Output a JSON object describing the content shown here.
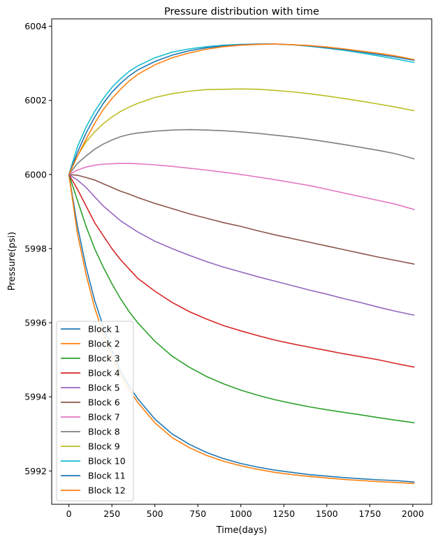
{
  "chart_data": {
    "type": "line",
    "title": "Pressure distribution with time",
    "xlabel": "Time(days)",
    "ylabel": "Pressure(psi)",
    "xlim": [
      -100,
      2110
    ],
    "ylim": [
      5991.1,
      6004.2
    ],
    "xticks": [
      0,
      250,
      500,
      750,
      1000,
      1250,
      1500,
      1750,
      2000
    ],
    "yticks": [
      5992,
      5994,
      5996,
      5998,
      6000,
      6002,
      6004
    ],
    "grid": false,
    "legend_position": "lower-left",
    "x": [
      0,
      50,
      100,
      150,
      200,
      250,
      300,
      350,
      400,
      500,
      600,
      700,
      800,
      900,
      1000,
      1100,
      1200,
      1300,
      1400,
      1500,
      1600,
      1700,
      1800,
      1900,
      2010
    ],
    "series": [
      {
        "name": "Block 1",
        "color": "#1f77b4",
        "values": [
          6000,
          5998.6,
          5997.5,
          5996.6,
          5995.9,
          5995.25,
          5994.7,
          5994.3,
          5993.95,
          5993.4,
          5993.0,
          5992.72,
          5992.5,
          5992.33,
          5992.2,
          5992.1,
          5992.02,
          5991.96,
          5991.9,
          5991.86,
          5991.82,
          5991.79,
          5991.76,
          5991.74,
          5991.7
        ]
      },
      {
        "name": "Block 2",
        "color": "#ff7f0e",
        "values": [
          6000,
          5998.4,
          5997.3,
          5996.4,
          5995.7,
          5995.1,
          5994.6,
          5994.2,
          5993.85,
          5993.3,
          5992.9,
          5992.63,
          5992.42,
          5992.26,
          5992.14,
          5992.04,
          5991.96,
          5991.9,
          5991.85,
          5991.81,
          5991.77,
          5991.74,
          5991.71,
          5991.69,
          5991.66
        ]
      },
      {
        "name": "Block 3",
        "color": "#2ca02c",
        "values": [
          6000,
          5999.3,
          5998.6,
          5998.0,
          5997.5,
          5997.05,
          5996.65,
          5996.3,
          5996.0,
          5995.5,
          5995.1,
          5994.8,
          5994.55,
          5994.35,
          5994.18,
          5994.04,
          5993.92,
          5993.82,
          5993.73,
          5993.65,
          5993.58,
          5993.51,
          5993.44,
          5993.37,
          5993.3
        ]
      },
      {
        "name": "Block 4",
        "color": "#d62728",
        "values": [
          6000,
          5999.6,
          5999.15,
          5998.7,
          5998.35,
          5998.0,
          5997.7,
          5997.45,
          5997.2,
          5996.85,
          5996.55,
          5996.3,
          5996.1,
          5995.92,
          5995.78,
          5995.65,
          5995.53,
          5995.43,
          5995.34,
          5995.25,
          5995.16,
          5995.08,
          5995.0,
          5994.9,
          5994.8
        ]
      },
      {
        "name": "Block 5",
        "color": "#9467bd",
        "values": [
          6000,
          5999.85,
          5999.65,
          5999.4,
          5999.15,
          5998.95,
          5998.75,
          5998.6,
          5998.45,
          5998.2,
          5998.0,
          5997.82,
          5997.65,
          5997.5,
          5997.37,
          5997.24,
          5997.12,
          5997.0,
          5996.88,
          5996.77,
          5996.65,
          5996.54,
          5996.42,
          5996.31,
          5996.2
        ]
      },
      {
        "name": "Block 6",
        "color": "#8c564b",
        "values": [
          6000,
          5999.98,
          5999.92,
          5999.85,
          5999.75,
          5999.65,
          5999.55,
          5999.47,
          5999.38,
          5999.22,
          5999.08,
          5998.94,
          5998.82,
          5998.7,
          5998.6,
          5998.48,
          5998.37,
          5998.27,
          5998.17,
          5998.07,
          5997.97,
          5997.87,
          5997.77,
          5997.68,
          5997.58
        ]
      },
      {
        "name": "Block 7",
        "color": "#e377c2",
        "values": [
          6000,
          6000.12,
          6000.2,
          6000.25,
          6000.28,
          6000.29,
          6000.3,
          6000.3,
          6000.29,
          6000.26,
          6000.22,
          6000.17,
          6000.12,
          6000.06,
          6000.0,
          5999.93,
          5999.86,
          5999.78,
          5999.7,
          5999.6,
          5999.5,
          5999.4,
          5999.3,
          5999.2,
          5999.05
        ]
      },
      {
        "name": "Block 8",
        "color": "#7f7f7f",
        "values": [
          6000,
          6000.3,
          6000.5,
          6000.68,
          6000.82,
          6000.93,
          6001.02,
          6001.08,
          6001.12,
          6001.17,
          6001.2,
          6001.21,
          6001.2,
          6001.18,
          6001.15,
          6001.11,
          6001.06,
          6001.01,
          6000.95,
          6000.88,
          6000.81,
          6000.73,
          6000.65,
          6000.56,
          6000.42
        ]
      },
      {
        "name": "Block 9",
        "color": "#bcbd22",
        "values": [
          6000,
          6000.5,
          6000.88,
          6001.15,
          6001.37,
          6001.55,
          6001.7,
          6001.82,
          6001.92,
          6002.08,
          6002.18,
          6002.25,
          6002.29,
          6002.3,
          6002.31,
          6002.3,
          6002.27,
          6002.23,
          6002.18,
          6002.12,
          6002.05,
          6001.98,
          6001.9,
          6001.82,
          6001.72
        ]
      },
      {
        "name": "Block 10",
        "color": "#17becf",
        "values": [
          6000,
          6000.75,
          6001.28,
          6001.7,
          6002.05,
          6002.35,
          6002.58,
          6002.78,
          6002.93,
          6003.15,
          6003.3,
          6003.39,
          6003.45,
          6003.49,
          6003.51,
          6003.52,
          6003.52,
          6003.5,
          6003.46,
          6003.41,
          6003.35,
          6003.28,
          6003.2,
          6003.12,
          6003.02
        ]
      },
      {
        "name": "Block 11",
        "color": "#1f77b4",
        "values": [
          6000,
          6000.6,
          6001.12,
          6001.55,
          6001.92,
          6002.22,
          6002.46,
          6002.66,
          6002.82,
          6003.05,
          6003.22,
          6003.34,
          6003.42,
          6003.47,
          6003.5,
          6003.52,
          6003.52,
          6003.5,
          6003.47,
          6003.42,
          6003.37,
          6003.31,
          6003.24,
          6003.17,
          6003.08
        ]
      },
      {
        "name": "Block 12",
        "color": "#ff7f0e",
        "values": [
          6000,
          6000.5,
          6000.95,
          6001.38,
          6001.75,
          6002.05,
          6002.3,
          6002.52,
          6002.7,
          6002.96,
          6003.15,
          6003.28,
          6003.38,
          6003.45,
          6003.49,
          6003.51,
          6003.52,
          6003.5,
          6003.48,
          6003.44,
          6003.39,
          6003.33,
          6003.27,
          6003.2,
          6003.1
        ]
      }
    ]
  }
}
